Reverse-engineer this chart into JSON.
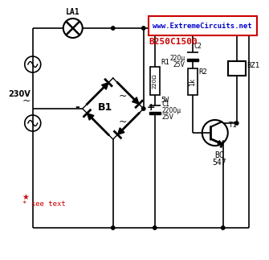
{
  "bg_color": "#ffffff",
  "website_text": "www.ExtremeCircuits.net",
  "website_color": "#0000cc",
  "website_border": "#cc0000",
  "part_number": "B250C1500",
  "part_number_color": "#cc0000",
  "label_LA1": "LA1",
  "label_B1": "B1",
  "label_R1": "R1",
  "label_R1_val": "220Ω",
  "label_R1_power": "5W",
  "label_R2": "R2",
  "label_R2_val": "1k",
  "label_C1": "C1",
  "label_C1_val": "2200μ",
  "label_C1_v": "25V",
  "label_C2": "C2",
  "label_C2_val": "220μ",
  "label_C2_v": "25V",
  "label_BZ1": "BZ1",
  "label_T1": "T1",
  "label_BC": "BC",
  "label_547": "547",
  "label_230V": "230V",
  "label_see_text": "* see text",
  "line_color": "#000000",
  "red_color": "#cc0000"
}
